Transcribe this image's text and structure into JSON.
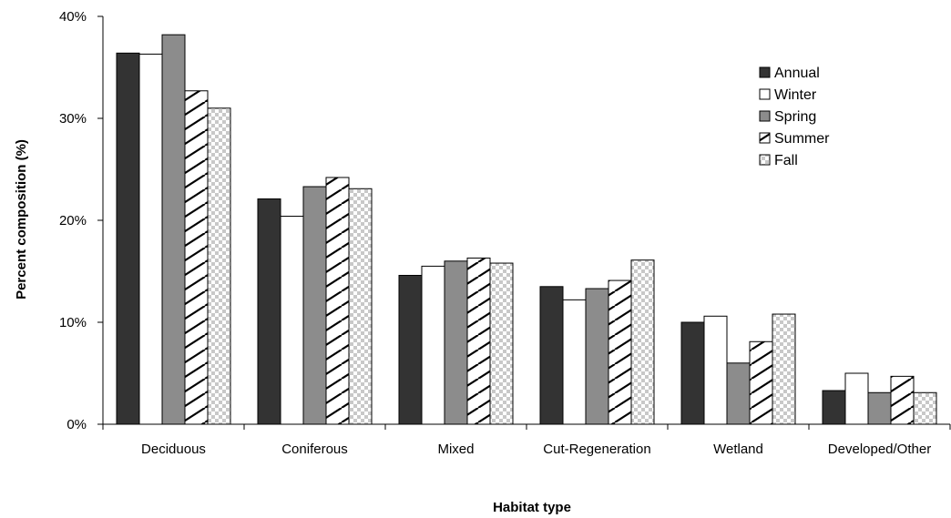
{
  "chart_data": {
    "type": "bar",
    "title": "",
    "xlabel": "Habitat type",
    "ylabel": "Percent composition (%)",
    "ylim": [
      0,
      40
    ],
    "yticks": [
      0,
      10,
      20,
      30,
      40
    ],
    "ytick_suffix": "%",
    "grid": false,
    "legend_position": "top-right",
    "categories": [
      "Deciduous",
      "Coniferous",
      "Mixed",
      "Cut-Regeneration",
      "Wetland",
      "Developed/Other"
    ],
    "series": [
      {
        "name": "Annual",
        "pattern": "solid-dark",
        "color": "#333333",
        "values": [
          36.4,
          22.1,
          14.6,
          13.5,
          10.0,
          3.3
        ]
      },
      {
        "name": "Winter",
        "pattern": "solid-white",
        "color": "#ffffff",
        "values": [
          36.3,
          20.4,
          15.5,
          12.2,
          10.6,
          5.0
        ]
      },
      {
        "name": "Spring",
        "pattern": "solid-gray",
        "color": "#8c8c8c",
        "values": [
          38.2,
          23.3,
          16.0,
          13.3,
          6.0,
          3.1
        ]
      },
      {
        "name": "Summer",
        "pattern": "diagonal-hatch",
        "color": "#000000",
        "values": [
          32.7,
          24.2,
          16.3,
          14.1,
          8.1,
          4.7
        ]
      },
      {
        "name": "Fall",
        "pattern": "checker",
        "color": "#c8c8c8",
        "values": [
          31.0,
          23.1,
          15.8,
          16.1,
          10.8,
          3.1
        ]
      }
    ]
  }
}
